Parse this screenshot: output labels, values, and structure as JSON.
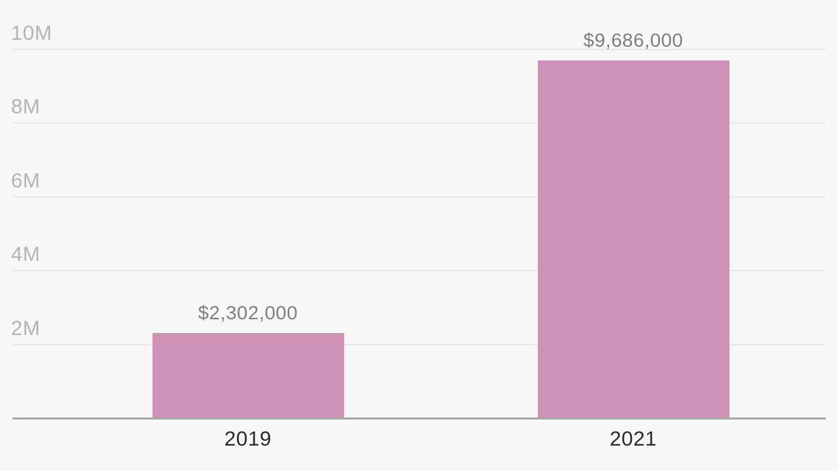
{
  "chart_data": {
    "type": "bar",
    "categories": [
      "2019",
      "2021"
    ],
    "values": [
      2302000,
      9686000
    ],
    "value_labels": [
      "$2,302,000",
      "$9,686,000"
    ],
    "y_ticks": [
      {
        "label": "2M",
        "value": 2000000
      },
      {
        "label": "4M",
        "value": 4000000
      },
      {
        "label": "6M",
        "value": 6000000
      },
      {
        "label": "8M",
        "value": 8000000
      },
      {
        "label": "10M",
        "value": 10000000
      }
    ],
    "ylim": [
      0,
      10000000
    ],
    "grid": true,
    "legend": false,
    "title": "",
    "xlabel": "",
    "ylabel": "",
    "colors": {
      "bar": "#cf93b8",
      "background": "#f7f7f7",
      "gridline": "#e8e8e8",
      "axis_line": "#a5a5a5",
      "y_tick_label": "#b4b4b4",
      "value_label": "#7f7f7f",
      "category_label": "#2a2a2a"
    }
  }
}
